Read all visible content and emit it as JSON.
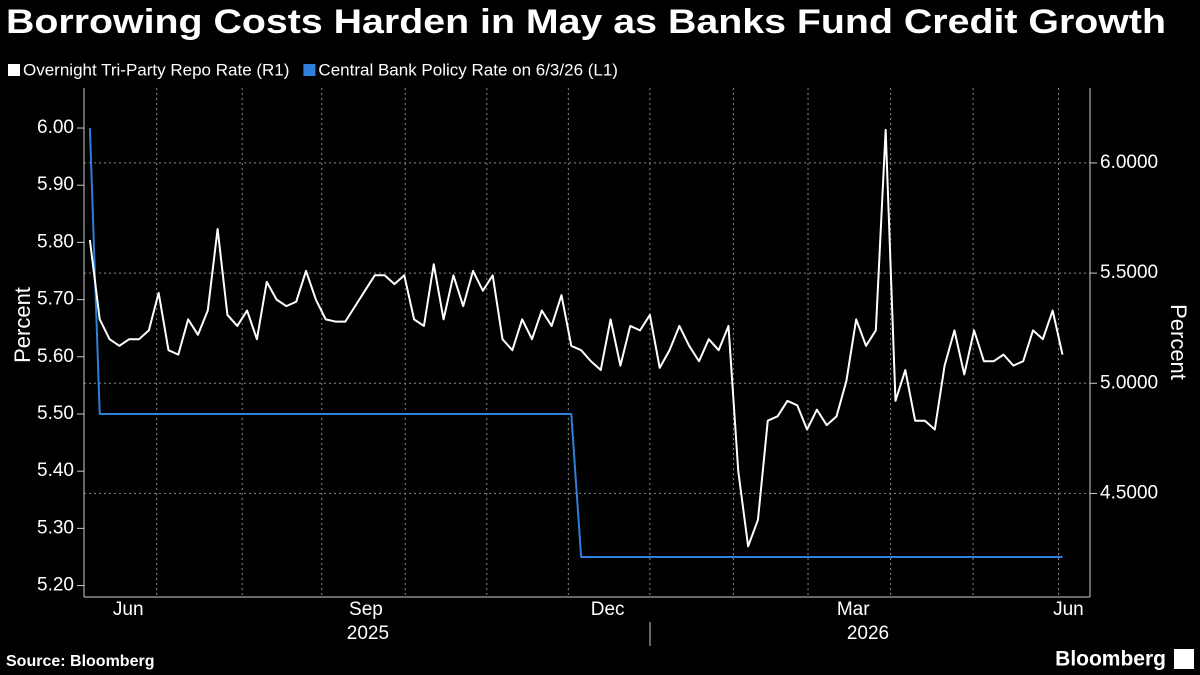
{
  "chart_data": {
    "type": "line",
    "title": "Borrowing Costs Harden in May as Banks Fund Credit Growth",
    "source": "Source: Bloomberg",
    "brand": "Bloomberg",
    "y_label": "Percent",
    "y2_label": "Percent",
    "xlim": [
      -0.6,
      101.8
    ],
    "xticks": [
      {
        "value": 3.9,
        "label": "Jun"
      },
      {
        "value": 28.1,
        "label": "Sep"
      },
      {
        "value": 52.7,
        "label": "Dec"
      },
      {
        "value": 77.7,
        "label": "Mar"
      },
      {
        "value": 99.6,
        "label": "Jun"
      }
    ],
    "xticks_year": [
      {
        "value": 28.3,
        "label": "2025"
      },
      {
        "value": 79.2,
        "label": "2026"
      }
    ],
    "xgrid": [
      6.8,
      15.5,
      23.6,
      32.1,
      40.4,
      48.7,
      57.0,
      65.5,
      73.1,
      81.5,
      89.9,
      98.6
    ],
    "ylim": [
      5.18,
      6.07
    ],
    "yticks": [
      {
        "value": 5.2,
        "label": "5.20"
      },
      {
        "value": 5.3,
        "label": "5.30"
      },
      {
        "value": 5.4,
        "label": "5.40"
      },
      {
        "value": 5.5,
        "label": "5.50"
      },
      {
        "value": 5.6,
        "label": "5.60"
      },
      {
        "value": 5.7,
        "label": "5.70"
      },
      {
        "value": 5.8,
        "label": "5.80"
      },
      {
        "value": 5.9,
        "label": "5.90"
      },
      {
        "value": 6.0,
        "label": "6.00"
      }
    ],
    "y2lim": [
      4.03,
      6.34
    ],
    "y2ticks": [
      {
        "value": 4.5,
        "label": "4.5000"
      },
      {
        "value": 5.0,
        "label": "5.0000"
      },
      {
        "value": 5.5,
        "label": "5.5000"
      },
      {
        "value": 6.0,
        "label": "6.0000"
      }
    ],
    "grid": true,
    "series": [
      {
        "name": "Overnight Tri-Party Repo Rate (R1)",
        "color": "#ffffff",
        "axis": "y2",
        "values": [
          5.65,
          5.29,
          5.2,
          5.17,
          5.2,
          5.2,
          5.24,
          5.41,
          5.15,
          5.13,
          5.29,
          5.22,
          5.33,
          5.7,
          5.31,
          5.26,
          5.33,
          5.2,
          5.46,
          5.38,
          5.35,
          5.37,
          5.51,
          5.38,
          5.29,
          5.28,
          5.28,
          5.35,
          5.42,
          5.49,
          5.49,
          5.45,
          5.49,
          5.29,
          5.26,
          5.54,
          5.29,
          5.49,
          5.35,
          5.51,
          5.42,
          5.49,
          5.2,
          5.15,
          5.29,
          5.2,
          5.33,
          5.26,
          5.4,
          5.17,
          5.15,
          5.1,
          5.06,
          5.29,
          5.08,
          5.26,
          5.24,
          5.31,
          5.07,
          5.15,
          5.26,
          5.17,
          5.1,
          5.2,
          5.15,
          5.26,
          4.6,
          4.26,
          4.38,
          4.83,
          4.85,
          4.92,
          4.9,
          4.79,
          4.88,
          4.81,
          4.85,
          5.01,
          5.29,
          5.17,
          5.24,
          6.15,
          4.92,
          5.06,
          4.83,
          4.83,
          4.79,
          5.08,
          5.24,
          5.04,
          5.24,
          5.1,
          5.1,
          5.13,
          5.08,
          5.1,
          5.24,
          5.2,
          5.33,
          5.13
        ]
      },
      {
        "name": "Central Bank Policy Rate on 6/3/26 (L1)",
        "color": "#2f7fdc",
        "axis": "y",
        "values": [
          6.0,
          5.5,
          5.5,
          5.5,
          5.5,
          5.5,
          5.5,
          5.5,
          5.5,
          5.5,
          5.5,
          5.5,
          5.5,
          5.5,
          5.5,
          5.5,
          5.5,
          5.5,
          5.5,
          5.5,
          5.5,
          5.5,
          5.5,
          5.5,
          5.5,
          5.5,
          5.5,
          5.5,
          5.5,
          5.5,
          5.5,
          5.5,
          5.5,
          5.5,
          5.5,
          5.5,
          5.5,
          5.5,
          5.5,
          5.5,
          5.5,
          5.5,
          5.5,
          5.5,
          5.5,
          5.5,
          5.5,
          5.5,
          5.5,
          5.5,
          5.25,
          5.25,
          5.25,
          5.25,
          5.25,
          5.25,
          5.25,
          5.25,
          5.25,
          5.25,
          5.25,
          5.25,
          5.25,
          5.25,
          5.25,
          5.25,
          5.25,
          5.25,
          5.25,
          5.25,
          5.25,
          5.25,
          5.25,
          5.25,
          5.25,
          5.25,
          5.25,
          5.25,
          5.25,
          5.25,
          5.25,
          5.25,
          5.25,
          5.25,
          5.25,
          5.25,
          5.25,
          5.25,
          5.25,
          5.25,
          5.25,
          5.25,
          5.25,
          5.25,
          5.25,
          5.25,
          5.25,
          5.25,
          5.25,
          5.25
        ]
      }
    ]
  }
}
